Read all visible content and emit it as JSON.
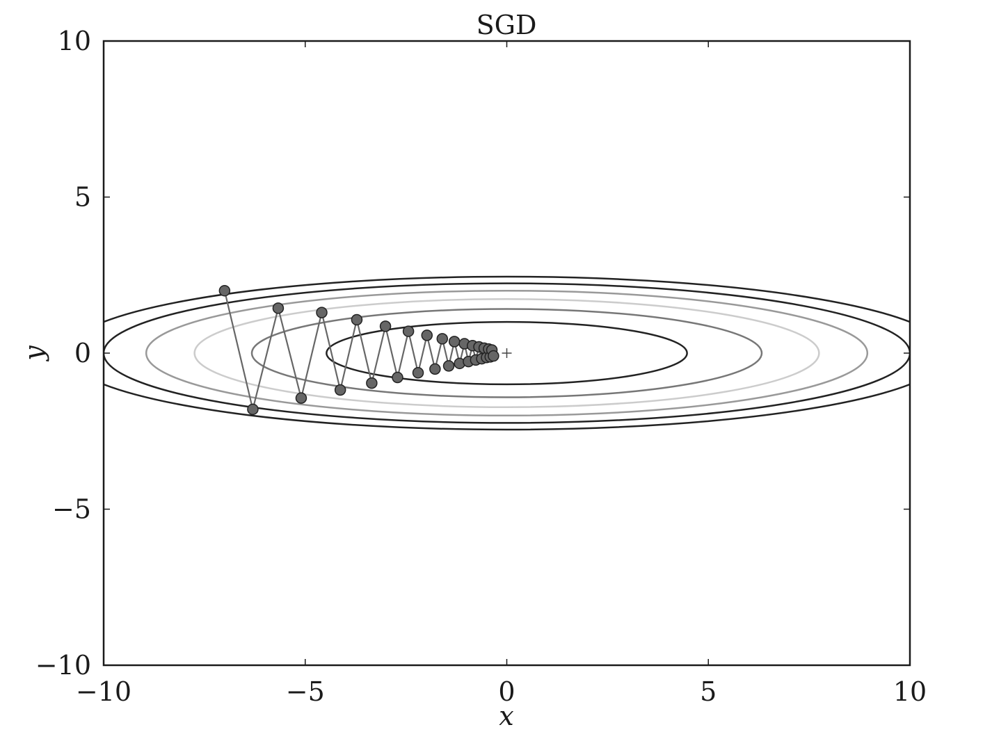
{
  "chart_data": {
    "type": "line",
    "title": "SGD",
    "xlabel": "x",
    "ylabel": "y",
    "xlim": [
      -10,
      10
    ],
    "ylim": [
      -10,
      10
    ],
    "xticks": [
      -10,
      -5,
      0,
      5,
      10
    ],
    "yticks": [
      -10,
      -5,
      0,
      5,
      10
    ],
    "xtick_labels": [
      "−10",
      "−5",
      "0",
      "5",
      "10"
    ],
    "ytick_labels": [
      "−10",
      "−5",
      "0",
      "5",
      "10"
    ],
    "grid": false,
    "minimum_marker": {
      "x": 0,
      "y": 0
    },
    "contours": {
      "function": "f(x, y) = x^2 / 20 + y^2",
      "levels": [
        {
          "value": 1,
          "color": "#222222"
        },
        {
          "value": 2,
          "color": "#777777"
        },
        {
          "value": 3,
          "color": "#cccccc"
        },
        {
          "value": 4,
          "color": "#999999"
        },
        {
          "value": 5,
          "color": "#222222"
        },
        {
          "value": 6,
          "color": "#222222"
        }
      ]
    },
    "path": {
      "line_color": "#666666",
      "marker_fill": "#666666",
      "marker_edge": "#222222",
      "points": [
        [
          -7.0,
          2.0
        ],
        [
          -6.3,
          -1.8
        ],
        [
          -5.67,
          1.44
        ],
        [
          -5.1,
          -1.44
        ],
        [
          -4.59,
          1.3
        ],
        [
          -4.13,
          -1.18
        ],
        [
          -3.72,
          1.07
        ],
        [
          -3.35,
          -0.96
        ],
        [
          -3.01,
          0.86
        ],
        [
          -2.71,
          -0.78
        ],
        [
          -2.44,
          0.7
        ],
        [
          -2.2,
          -0.63
        ],
        [
          -1.98,
          0.57
        ],
        [
          -1.78,
          -0.51
        ],
        [
          -1.6,
          0.46
        ],
        [
          -1.44,
          -0.41
        ],
        [
          -1.3,
          0.37
        ],
        [
          -1.17,
          -0.33
        ],
        [
          -1.05,
          0.3
        ],
        [
          -0.95,
          -0.27
        ],
        [
          -0.85,
          0.24
        ],
        [
          -0.77,
          -0.22
        ],
        [
          -0.69,
          0.2
        ],
        [
          -0.62,
          -0.18
        ],
        [
          -0.56,
          0.16
        ],
        [
          -0.5,
          -0.14
        ],
        [
          -0.45,
          0.13
        ],
        [
          -0.41,
          -0.12
        ],
        [
          -0.37,
          0.1
        ],
        [
          -0.33,
          -0.09
        ]
      ]
    }
  }
}
